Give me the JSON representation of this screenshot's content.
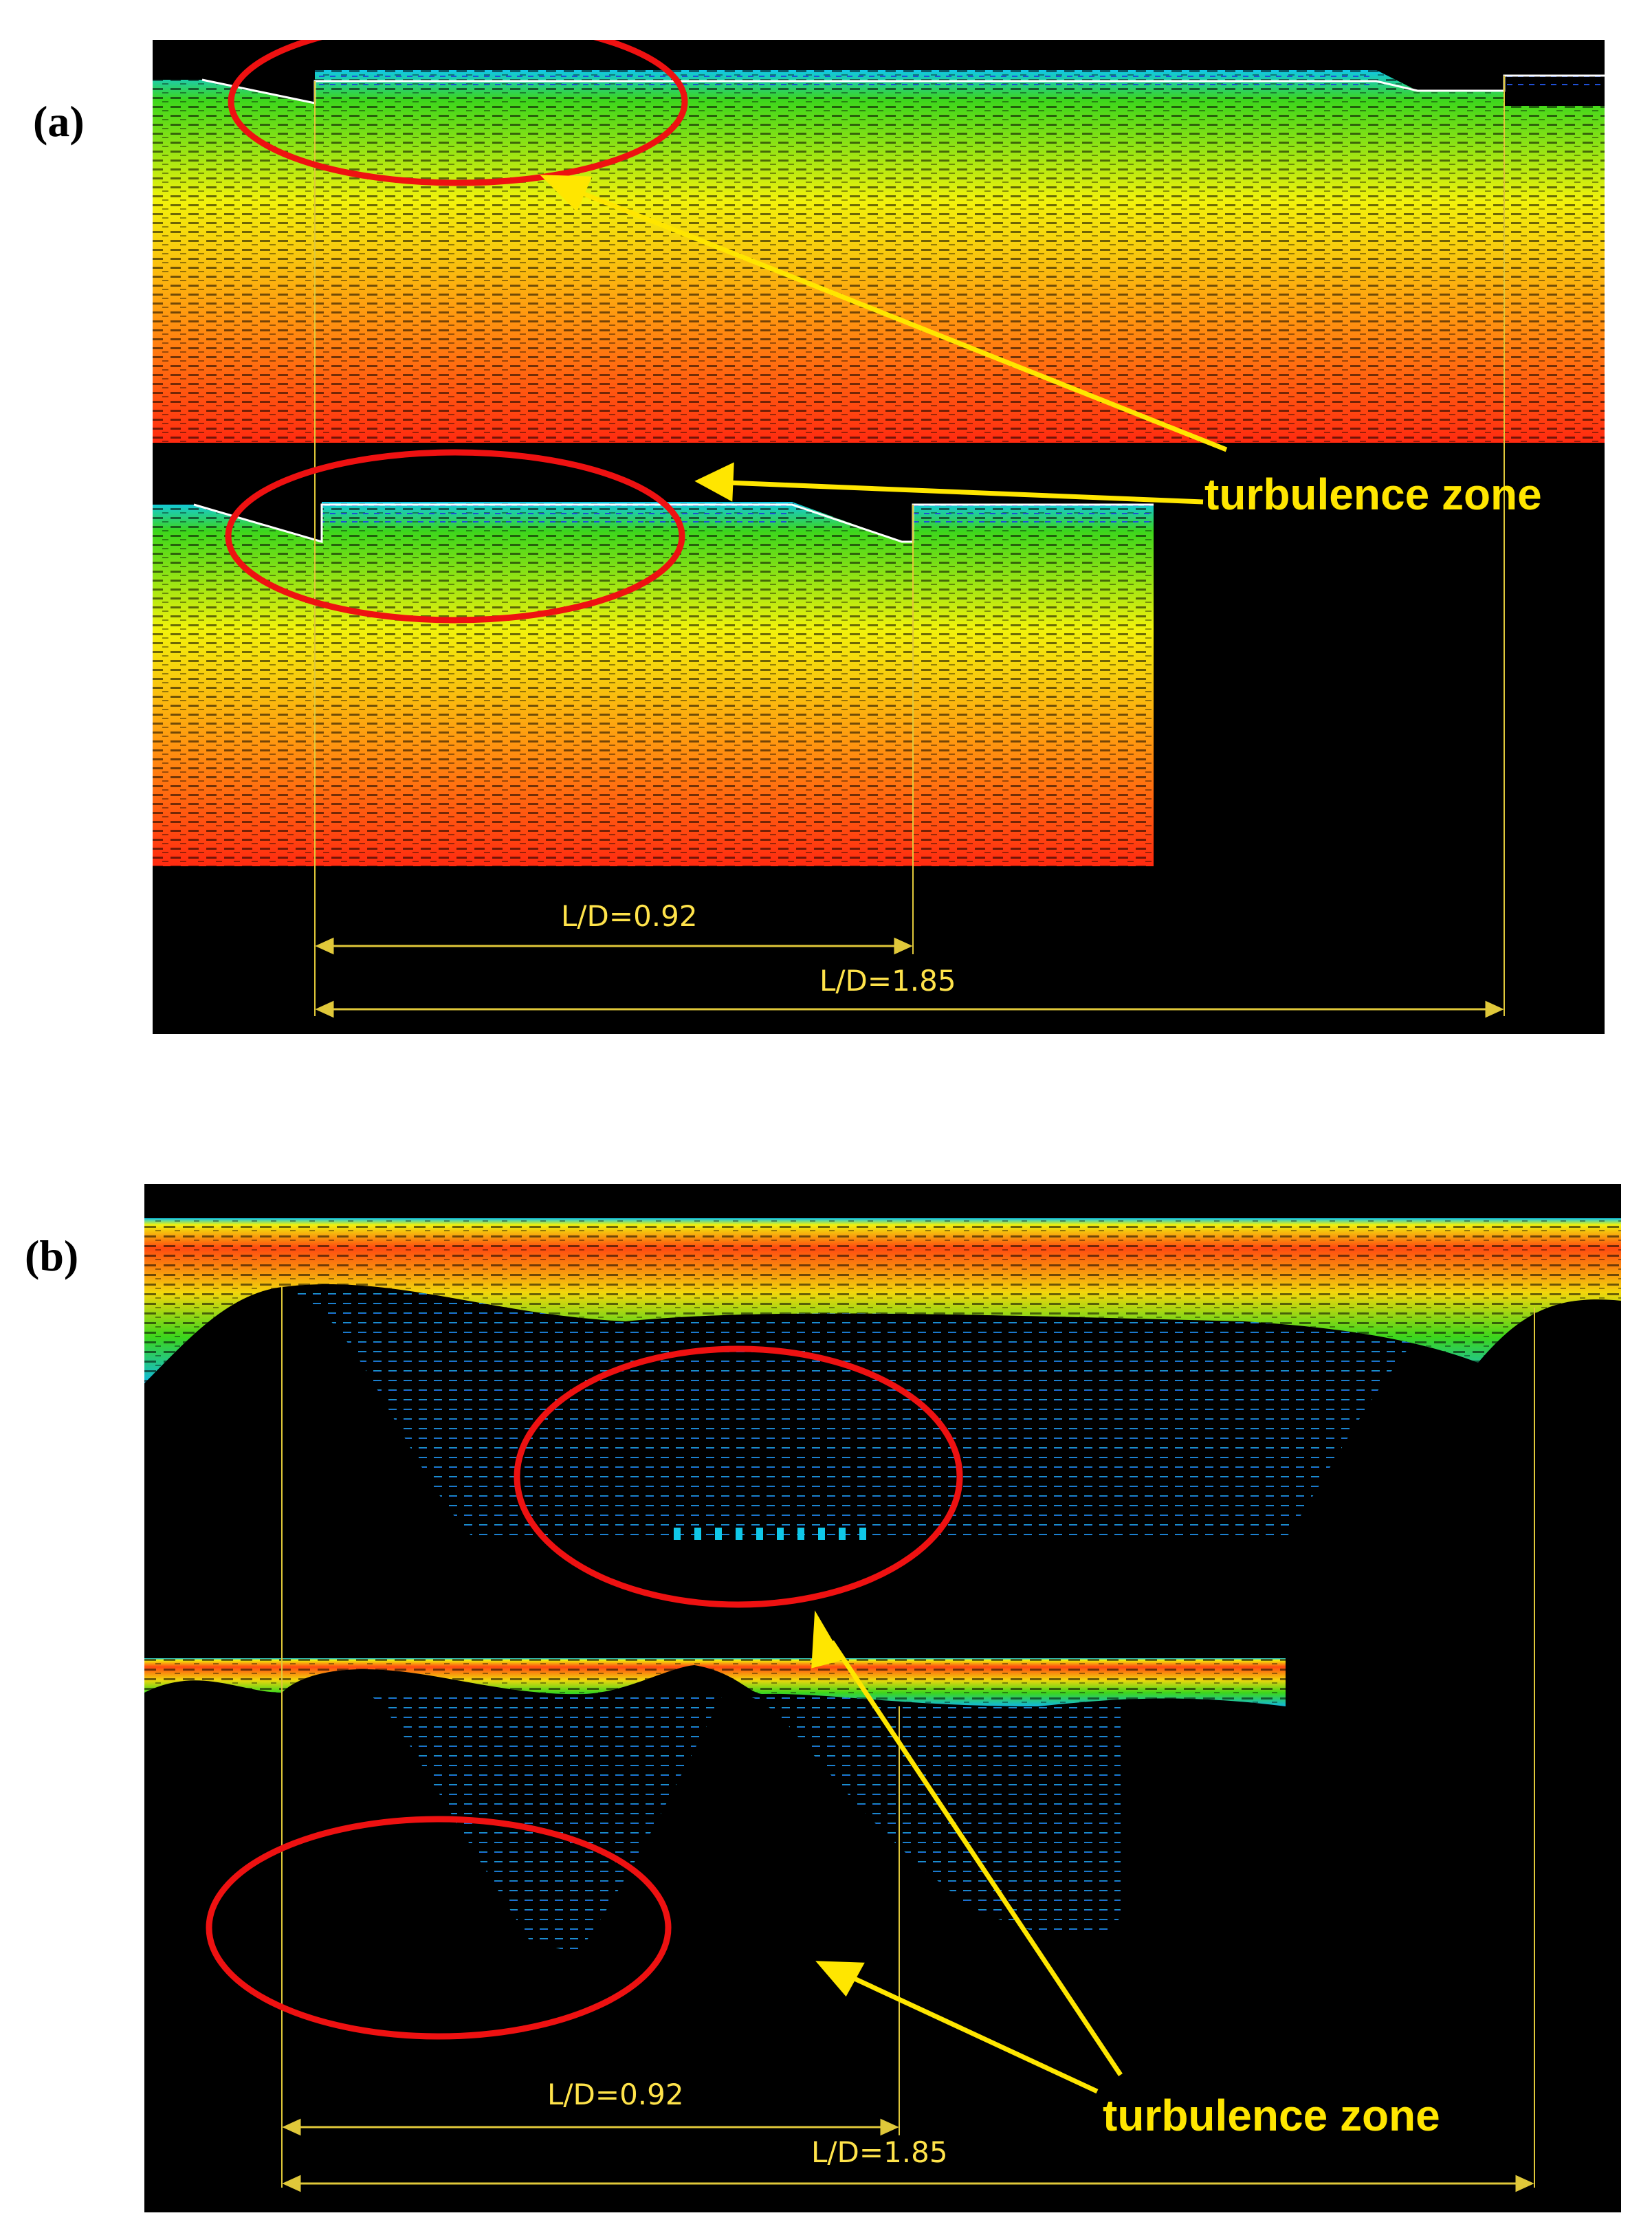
{
  "panels": {
    "a": {
      "tag": "(a)",
      "callout": "turbulence zone",
      "dim_short": "L/D=0.92",
      "dim_long": "L/D=1.85"
    },
    "b": {
      "tag": "(b)",
      "callout": "turbulence zone",
      "dim_short": "L/D=0.92",
      "dim_long": "L/D=1.85"
    }
  },
  "colors": {
    "background": "#000000",
    "velocity_high": "#ff2a10",
    "velocity_mid_high": "#ff9a10",
    "velocity_mid": "#f2f20c",
    "velocity_mid_low": "#3cd61c",
    "velocity_low": "#10c8e8",
    "velocity_lowest": "#1f4fd6",
    "highlight_ellipse": "#ee1111",
    "annotation": "#ffe600",
    "dimension_line": "#e0c83a"
  }
}
